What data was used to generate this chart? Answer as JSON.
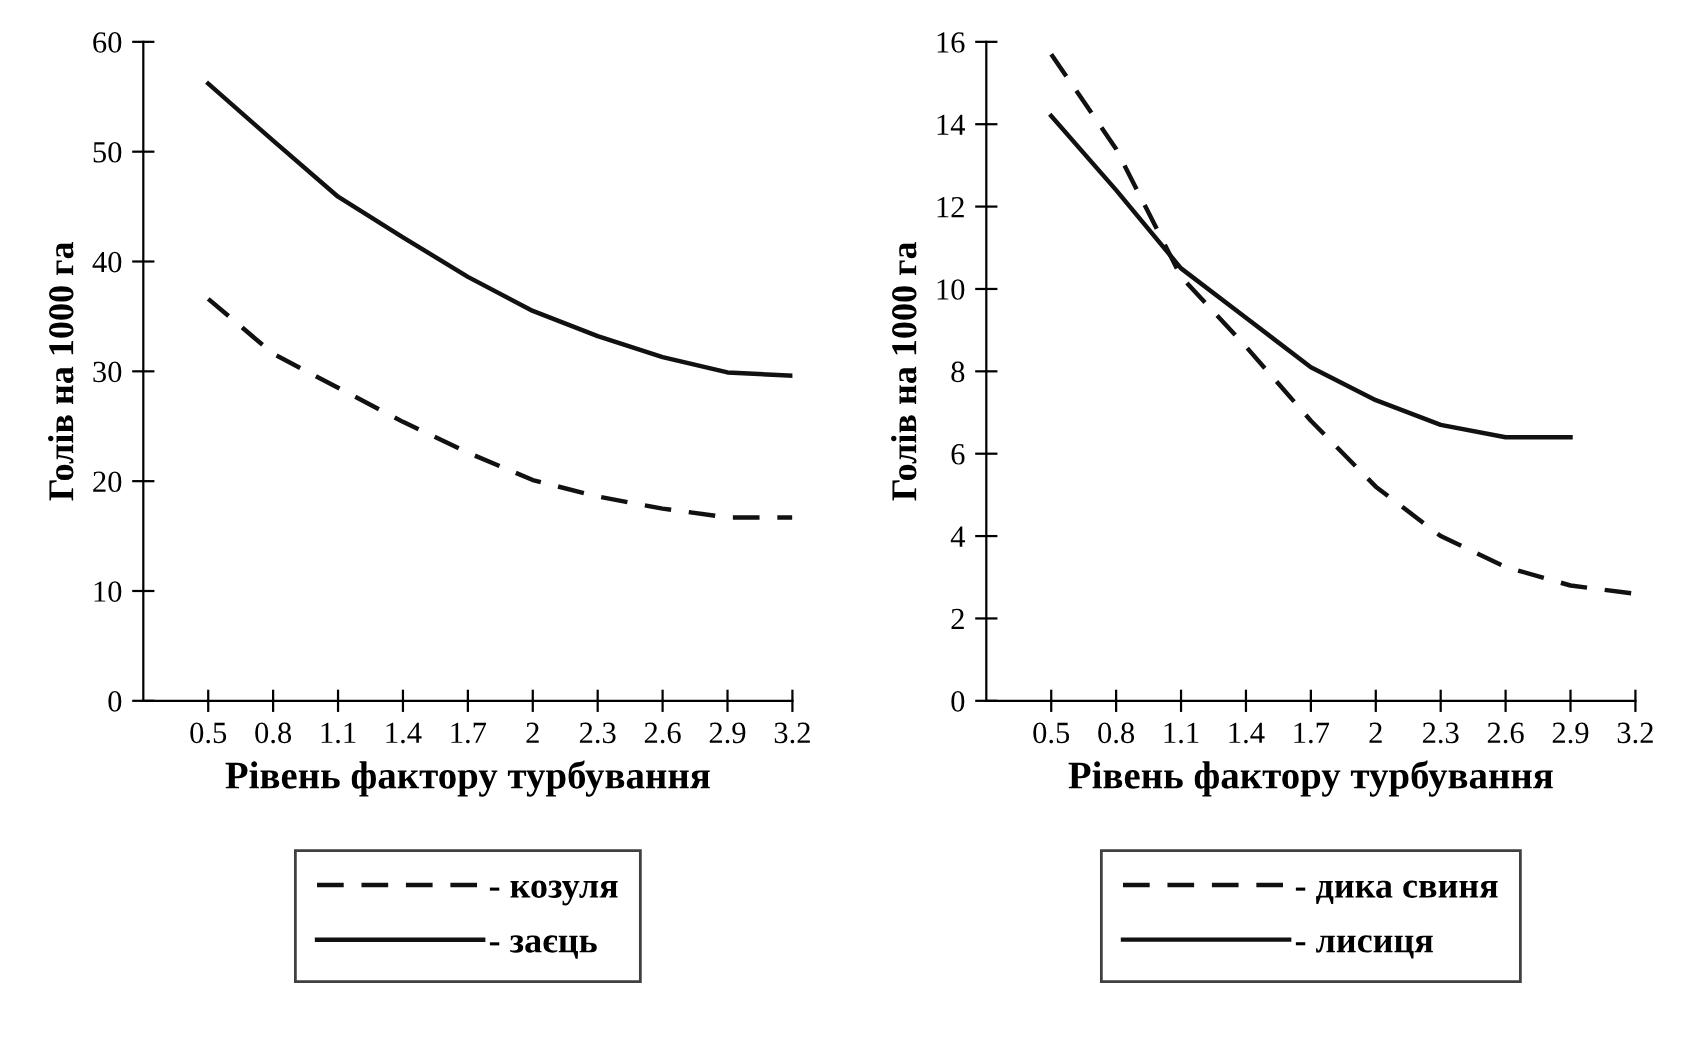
{
  "chart_data": [
    {
      "type": "line",
      "ylabel": "Голів на 1000 га",
      "xlabel": "Рівень фактору турбування",
      "x": [
        0.5,
        0.8,
        1.1,
        1.4,
        1.7,
        2,
        2.3,
        2.6,
        2.9,
        3.2
      ],
      "xlim": [
        0.2,
        3.2
      ],
      "xticks": [
        0.5,
        0.8,
        1.1,
        1.4,
        1.7,
        2,
        2.3,
        2.6,
        2.9,
        3.2
      ],
      "ylim": [
        0,
        60
      ],
      "yticks": [
        0,
        10,
        20,
        30,
        40,
        50,
        60
      ],
      "grid": false,
      "legend": "bottom",
      "marker": "none",
      "series": [
        {
          "name": "- козуля",
          "color": "#111111",
          "line_style": "dashed",
          "values": [
            36.6,
            31.6,
            28.5,
            25.4,
            22.6,
            20.1,
            18.6,
            17.5,
            16.7,
            16.7
          ]
        },
        {
          "name": "- заєць",
          "color": "#111111",
          "line_style": "solid",
          "values": [
            56.2,
            51,
            45.9,
            42.2,
            38.6,
            35.5,
            33.2,
            31.3,
            29.9,
            29.6
          ]
        }
      ]
    },
    {
      "type": "line",
      "ylabel": "Голів на 1000 га",
      "xlabel": "Рівень фактору турбування",
      "x": [
        0.5,
        0.8,
        1.1,
        1.4,
        1.7,
        2,
        2.3,
        2.6,
        2.9,
        3.2
      ],
      "xlim": [
        0.2,
        3.2
      ],
      "xticks": [
        0.5,
        0.8,
        1.1,
        1.4,
        1.7,
        2,
        2.3,
        2.6,
        2.9,
        3.2
      ],
      "ylim": [
        0,
        16
      ],
      "yticks": [
        0,
        2,
        4,
        6,
        8,
        10,
        12,
        14,
        16
      ],
      "grid": false,
      "legend": "bottom",
      "marker": "none",
      "series": [
        {
          "name": "- дика свиня",
          "color": "#111111",
          "line_style": "dashed",
          "values": [
            15.7,
            13.4,
            10.3,
            8.6,
            6.8,
            5.2,
            4.0,
            3.25,
            2.8,
            2.6
          ]
        },
        {
          "name": "- лисиця",
          "color": "#111111",
          "line_style": "solid",
          "values": [
            14.2,
            12.4,
            10.5,
            9.3,
            8.1,
            7.3,
            6.7,
            6.4,
            6.4,
            null
          ]
        }
      ]
    }
  ]
}
